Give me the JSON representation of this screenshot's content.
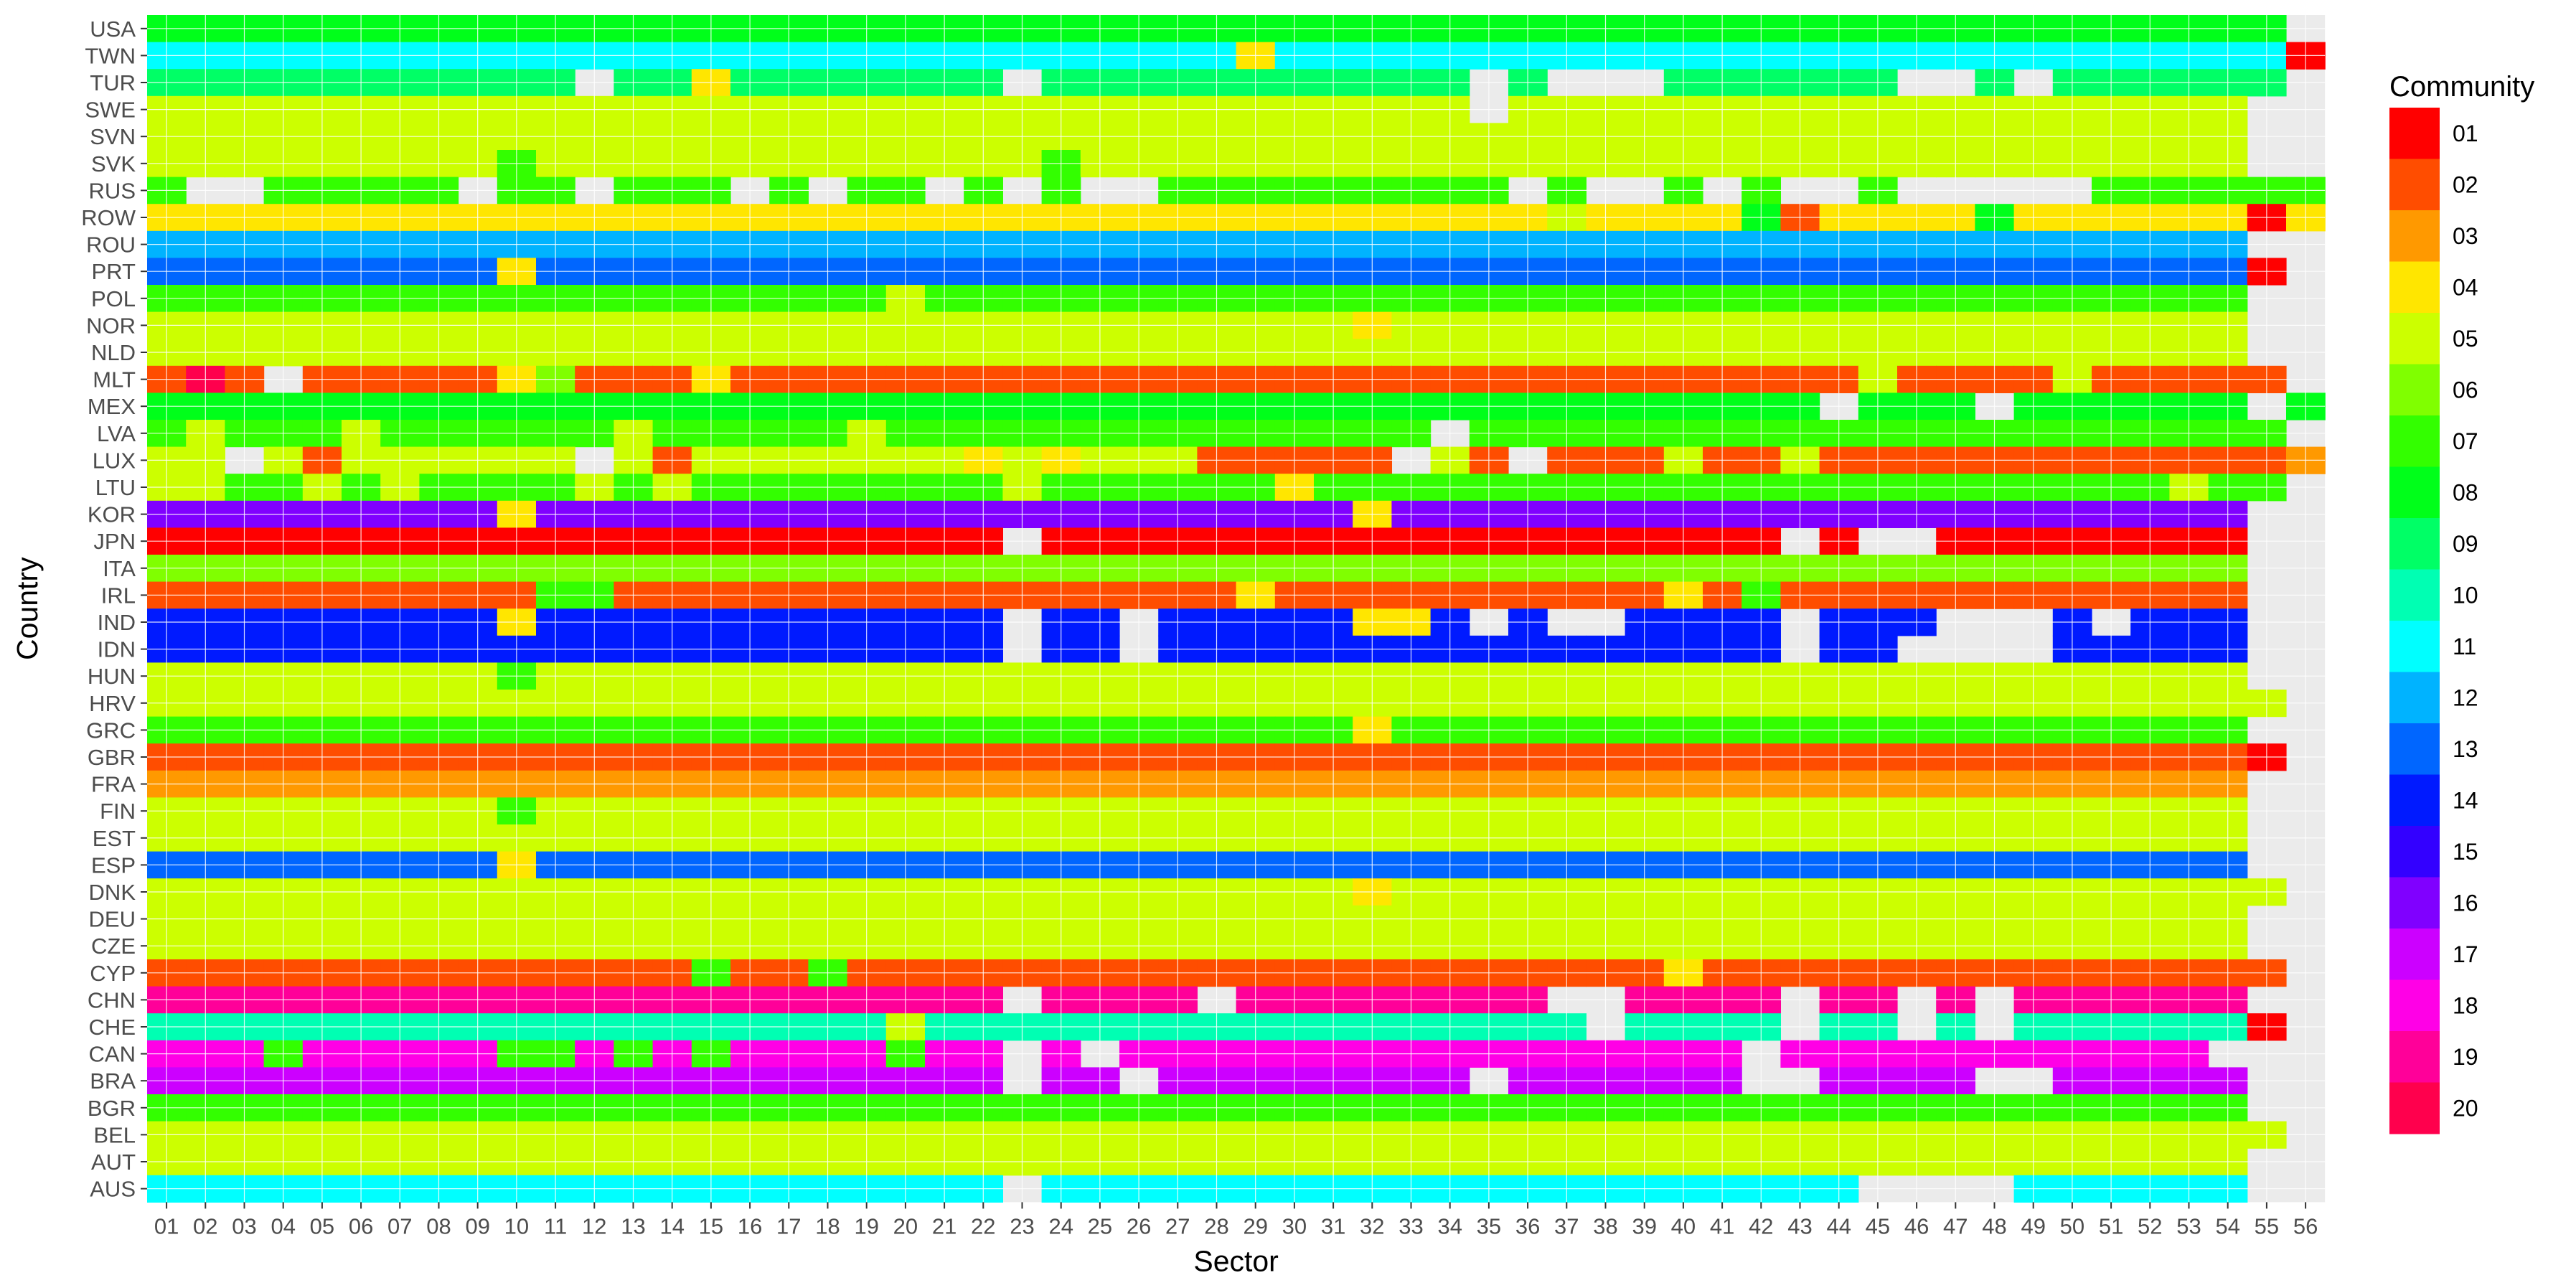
{
  "chart_data": {
    "type": "heatmap",
    "xlabel": "Sector",
    "ylabel": "Country",
    "legend_title": "Community",
    "legend_position": "right",
    "background_color": "#ebebeb",
    "grid": true,
    "sectors": [
      "01",
      "02",
      "03",
      "04",
      "05",
      "06",
      "07",
      "08",
      "09",
      "10",
      "11",
      "12",
      "13",
      "14",
      "15",
      "16",
      "17",
      "18",
      "19",
      "20",
      "21",
      "22",
      "23",
      "24",
      "25",
      "26",
      "27",
      "28",
      "29",
      "30",
      "31",
      "32",
      "33",
      "34",
      "35",
      "36",
      "37",
      "38",
      "39",
      "40",
      "41",
      "42",
      "43",
      "44",
      "45",
      "46",
      "47",
      "48",
      "49",
      "50",
      "51",
      "52",
      "53",
      "54",
      "55",
      "56"
    ],
    "communities": [
      {
        "id": "01",
        "color": "#ff0000"
      },
      {
        "id": "02",
        "color": "#ff4d00"
      },
      {
        "id": "03",
        "color": "#ff9900"
      },
      {
        "id": "04",
        "color": "#ffe600"
      },
      {
        "id": "05",
        "color": "#ccff00"
      },
      {
        "id": "06",
        "color": "#80ff00"
      },
      {
        "id": "07",
        "color": "#33ff00"
      },
      {
        "id": "08",
        "color": "#00ff1a"
      },
      {
        "id": "09",
        "color": "#00ff66"
      },
      {
        "id": "10",
        "color": "#00ffb3"
      },
      {
        "id": "11",
        "color": "#00ffff"
      },
      {
        "id": "12",
        "color": "#00b3ff"
      },
      {
        "id": "13",
        "color": "#0066ff"
      },
      {
        "id": "14",
        "color": "#001aff"
      },
      {
        "id": "15",
        "color": "#3300ff"
      },
      {
        "id": "16",
        "color": "#8000ff"
      },
      {
        "id": "17",
        "color": "#cc00ff"
      },
      {
        "id": "18",
        "color": "#ff00e6"
      },
      {
        "id": "19",
        "color": "#ff0099"
      },
      {
        "id": "20",
        "color": "#ff004d"
      }
    ],
    "rows": [
      {
        "country": "USA",
        "cells": "08*55"
      },
      {
        "country": "TWN",
        "cells": "11*28 04 11*26 01"
      },
      {
        "country": "TUR",
        "cells": "09*11 - 09*2 04 09*7 - 09*11 - 09 -*3 09*6 -*2 09 - 09*6"
      },
      {
        "country": "SWE",
        "cells": "05*34 - 05*19"
      },
      {
        "country": "SVN",
        "cells": "05*54"
      },
      {
        "country": "SVK",
        "cells": "05*9 07 05*13 07 05*30"
      },
      {
        "country": "RUS",
        "cells": "07 -*2 07*5 - 07*2 - 07*3 - 07 - 07*2 - 07 - 07 -*2 07*9 - 07 -*2 07 - 07 -*2 07 -*5 07*6"
      },
      {
        "country": "ROW",
        "cells": "04*36 05 04*4 08 02 04*4 08 04*6 01 04"
      },
      {
        "country": "ROU",
        "cells": "12*54"
      },
      {
        "country": "PRT",
        "cells": "13*9 04 13*44 01"
      },
      {
        "country": "POL",
        "cells": "07*19 05 07*34"
      },
      {
        "country": "NOR",
        "cells": "05*31 04 05*22"
      },
      {
        "country": "NLD",
        "cells": "05*54"
      },
      {
        "country": "MLT",
        "cells": "02 20 02 - 02*5 04 06 02*3 04 02*29 05 02*4 05 02*5"
      },
      {
        "country": "MEX",
        "cells": "08*43 - 08*3 - 08*6 - 08"
      },
      {
        "country": "LVA",
        "cells": "07 05 07*3 05 07*6 05 07*5 05 07*14 - 07*21"
      },
      {
        "country": "LUX",
        "cells": "05*2 - 05 02 05*6 - 05 02 05*7 04 05 04 05*3 02*5 - 05 02 - 02*3 05 02*2 05 02*12 03"
      },
      {
        "country": "LTU",
        "cells": "05*2 07*2 05 07 05 07*4 05 07 05 07*8 05 07*6 04 07*22 05 07*2"
      },
      {
        "country": "KOR",
        "cells": "16*9 04 16*21 04 16*22"
      },
      {
        "country": "JPN",
        "cells": "01*22 - 01*19 - 01 -*2 01*8"
      },
      {
        "country": "ITA",
        "cells": "06*54"
      },
      {
        "country": "IRL",
        "cells": "02*10 07*2 02*16 04 02*10 04 02 07 02*12"
      },
      {
        "country": "IND",
        "cells": "14*9 04 14*12 - 14*2 - 14*5 04*2 14 - 14 -*2 14*4 - 14*3 -*3 14 - 14*3"
      },
      {
        "country": "IDN",
        "cells": "14*22 - 14*2 - 14*16 - 14*2 -*4 14*5"
      },
      {
        "country": "HUN",
        "cells": "05*9 07 05*44"
      },
      {
        "country": "HRV",
        "cells": "05*55"
      },
      {
        "country": "GRC",
        "cells": "07*31 04 07*22"
      },
      {
        "country": "GBR",
        "cells": "02*54 01"
      },
      {
        "country": "FRA",
        "cells": "03*54"
      },
      {
        "country": "FIN",
        "cells": "05*9 07 05*44"
      },
      {
        "country": "EST",
        "cells": "05*54"
      },
      {
        "country": "ESP",
        "cells": "13*9 04 13*44"
      },
      {
        "country": "DNK",
        "cells": "05*31 04 05*23"
      },
      {
        "country": "DEU",
        "cells": "05*54"
      },
      {
        "country": "CZE",
        "cells": "05*54"
      },
      {
        "country": "CYP",
        "cells": "02*14 07 02*2 07 02*21 04 02*15"
      },
      {
        "country": "CHN",
        "cells": "19*22 - 19*4 - 19*8 -*2 19*4 - 19*2 - 19 - 19*6"
      },
      {
        "country": "CHE",
        "cells": "10*19 05 10*17 - 10*4 - 10*2 - 10 - 10*6 01"
      },
      {
        "country": "CAN",
        "cells": "18*3 07 18*5 07*2 18 07 18 07 18*4 07 18*2 - 18 - 18*16 - 18*11"
      },
      {
        "country": "BRA",
        "cells": "17*22 - 17*2 - 17*8 - 17*6 -*2 17*4 -*2 17*5"
      },
      {
        "country": "BGR",
        "cells": "07*54"
      },
      {
        "country": "BEL",
        "cells": "05*55"
      },
      {
        "country": "AUT",
        "cells": "05*54"
      },
      {
        "country": "AUS",
        "cells": "11*22 - 11*21 -*4 11*6"
      }
    ]
  }
}
